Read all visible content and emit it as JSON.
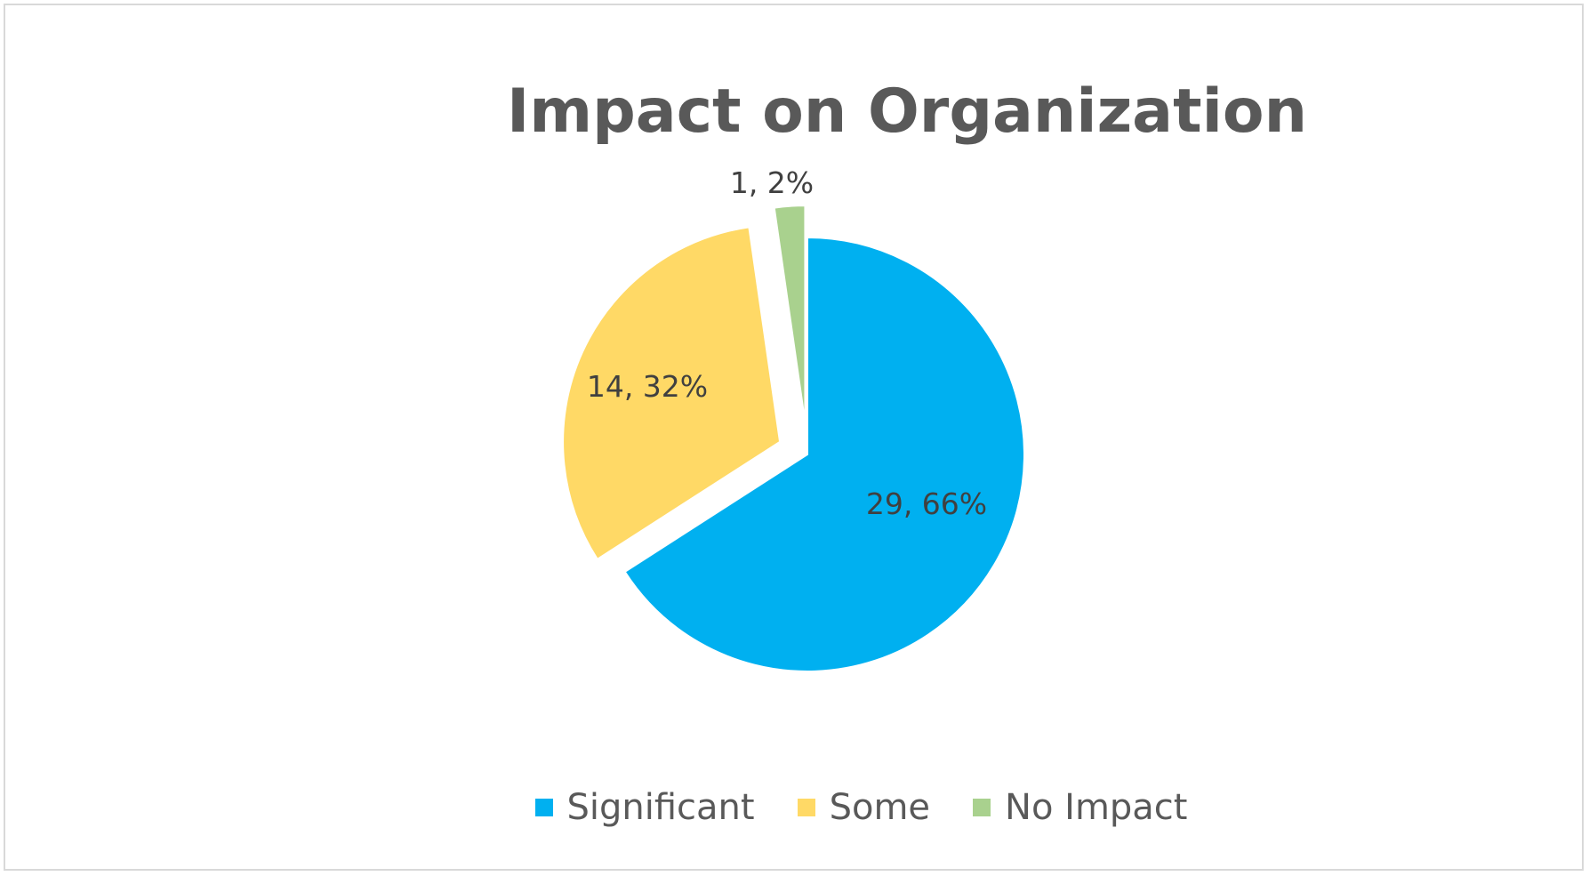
{
  "chart_data": {
    "type": "pie",
    "title": "Impact on Organization",
    "categories": [
      "Significant",
      "Some",
      "No Impact"
    ],
    "values": [
      29,
      14,
      1
    ],
    "percent_labels": [
      "66%",
      "32%",
      "2%"
    ],
    "data_labels": [
      "29, 66%",
      "14, 32%",
      "1, 2%"
    ],
    "colors": [
      "#00B0F0",
      "#FFD966",
      "#A9D18E"
    ],
    "legend_position": "bottom",
    "exploded": true
  }
}
